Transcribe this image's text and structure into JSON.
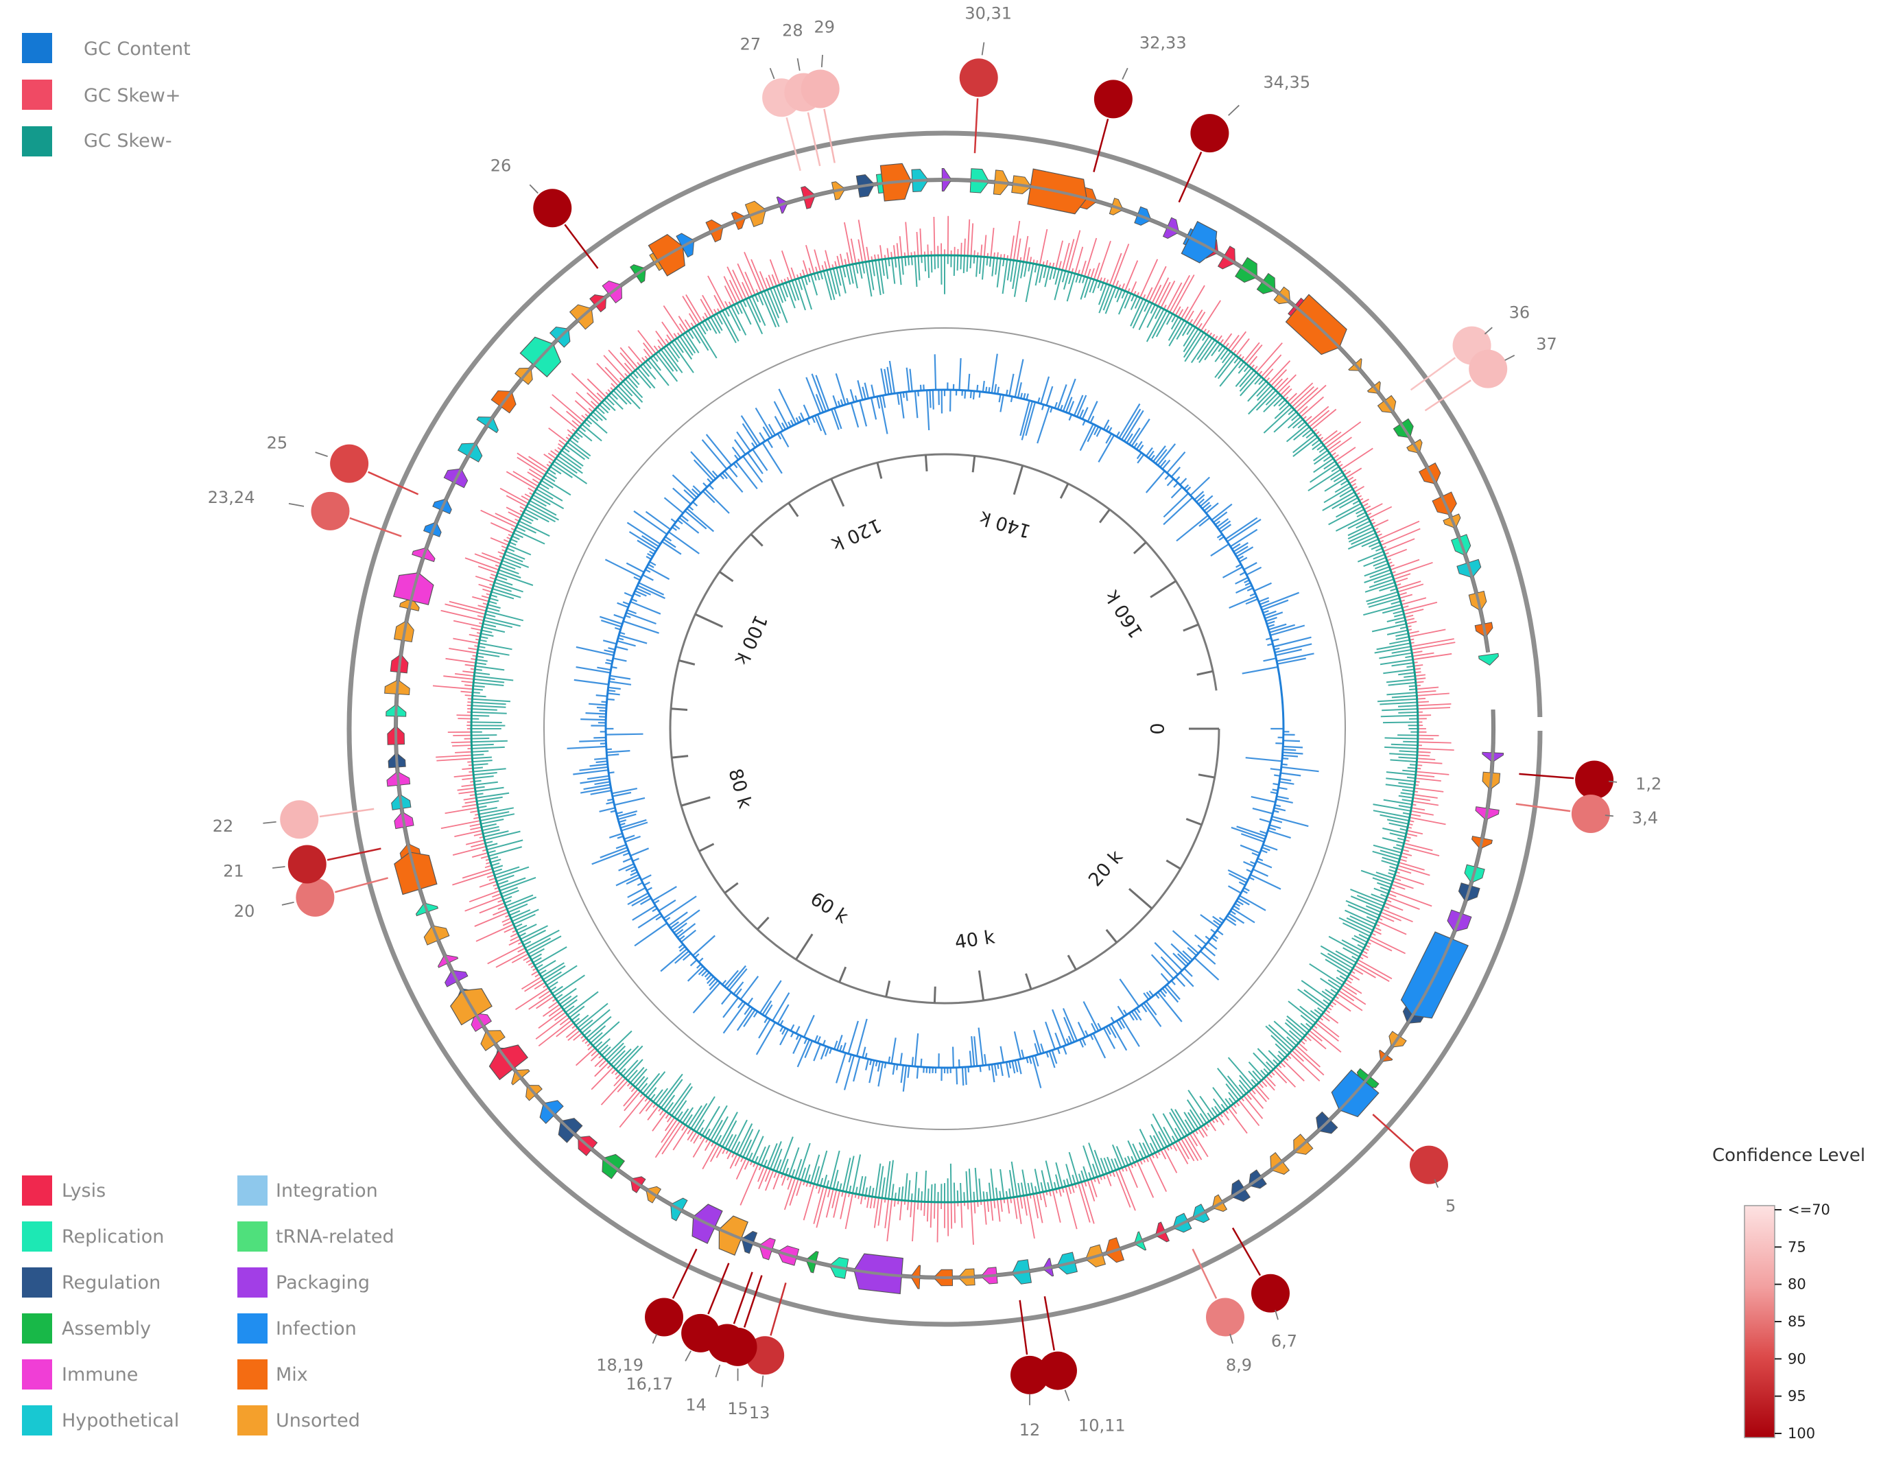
{
  "top_legend": [
    {
      "label": "GC Content",
      "color": "#1478d4"
    },
    {
      "label": "GC Skew+",
      "color": "#f04a64"
    },
    {
      "label": "GC Skew-",
      "color": "#139a8c"
    }
  ],
  "function_legend": [
    {
      "label": "Lysis",
      "color": "#f0284e"
    },
    {
      "label": "Integration",
      "color": "#8ec8ec"
    },
    {
      "label": "Replication",
      "color": "#1de8b4"
    },
    {
      "label": "tRNA-related",
      "color": "#4fe07c"
    },
    {
      "label": "Regulation",
      "color": "#2c558a"
    },
    {
      "label": "Packaging",
      "color": "#a23ee6"
    },
    {
      "label": "Assembly",
      "color": "#18b848"
    },
    {
      "label": "Infection",
      "color": "#208ef0"
    },
    {
      "label": "Immune",
      "color": "#f03ed6"
    },
    {
      "label": "Mix",
      "color": "#f46c12"
    },
    {
      "label": "Hypothetical",
      "color": "#18c8d2"
    },
    {
      "label": "Unsorted",
      "color": "#f4a02c"
    }
  ],
  "colorbar": {
    "title": "Confidence Level",
    "ticks": [
      "<=70",
      "75",
      "80",
      "85",
      "90",
      "95",
      "100"
    ],
    "min_color": "#fde2e2",
    "max_color": "#a8000a"
  },
  "genome_axis": {
    "tick_labels": [
      "0",
      "20 k",
      "40 k",
      "60 k",
      "80 k",
      "100 k",
      "120 k",
      "140 k",
      "160 k"
    ]
  },
  "markers": [
    {
      "label": "1,2",
      "confidence": 100
    },
    {
      "label": "3,4",
      "confidence": 85
    },
    {
      "label": "5",
      "confidence": 92
    },
    {
      "label": "6,7",
      "confidence": 100
    },
    {
      "label": "8,9",
      "confidence": 84
    },
    {
      "label": "10,11",
      "confidence": 100
    },
    {
      "label": "12",
      "confidence": 100
    },
    {
      "label": "13",
      "confidence": 93
    },
    {
      "label": "14",
      "confidence": 100
    },
    {
      "label": "15",
      "confidence": 100
    },
    {
      "label": "16,17",
      "confidence": 100
    },
    {
      "label": "18,19",
      "confidence": 100
    },
    {
      "label": "20",
      "confidence": 85
    },
    {
      "label": "21",
      "confidence": 95
    },
    {
      "label": "22",
      "confidence": 77
    },
    {
      "label": "23,24",
      "confidence": 87
    },
    {
      "label": "25",
      "confidence": 90
    },
    {
      "label": "26",
      "confidence": 100
    },
    {
      "label": "27",
      "confidence": 75
    },
    {
      "label": "28",
      "confidence": 76
    },
    {
      "label": "29",
      "confidence": 77
    },
    {
      "label": "30,31",
      "confidence": 92
    },
    {
      "label": "32,33",
      "confidence": 100
    },
    {
      "label": "34,35",
      "confidence": 100
    },
    {
      "label": "36",
      "confidence": 75
    },
    {
      "label": "37",
      "confidence": 76
    }
  ]
}
